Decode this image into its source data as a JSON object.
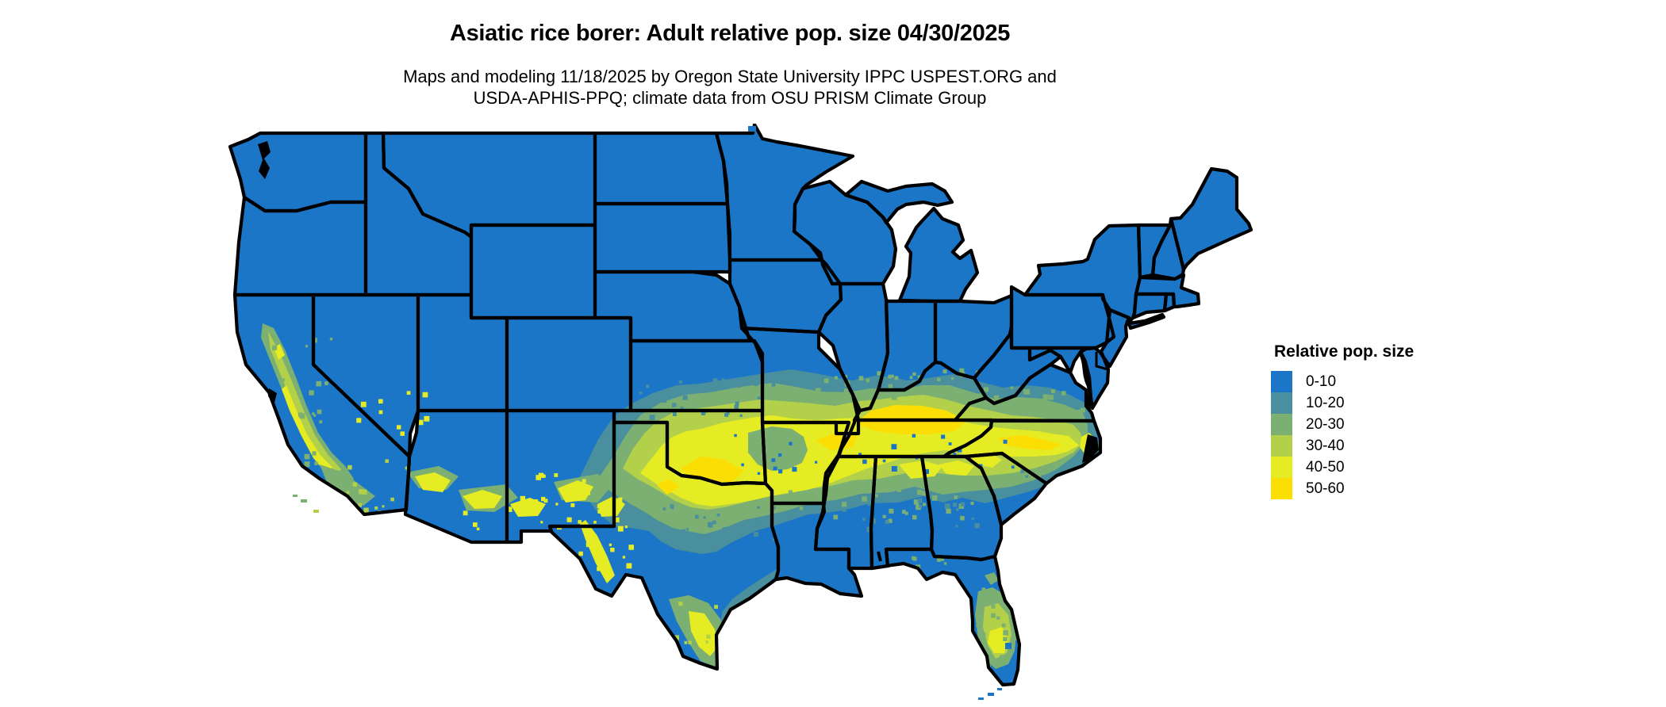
{
  "header": {
    "title": "Asiatic rice borer: Adult relative pop. size 04/30/2025",
    "subtitle_line1": "Maps and modeling 11/18/2025 by Oregon State University IPPC USPEST.ORG and",
    "subtitle_line2": "USDA-APHIS-PPQ; climate data from OSU PRISM Climate Group"
  },
  "legend": {
    "title": "Relative pop. size",
    "items": [
      {
        "label": "0-10",
        "color": "#1b76c8"
      },
      {
        "label": "10-20",
        "color": "#4a8f9d"
      },
      {
        "label": "20-30",
        "color": "#7cb072"
      },
      {
        "label": "30-40",
        "color": "#b2d04a"
      },
      {
        "label": "40-50",
        "color": "#e5ec23"
      },
      {
        "label": "50-60",
        "color": "#fbdf04"
      }
    ]
  },
  "map": {
    "background_color": "#ffffff",
    "state_border_color": "#000000"
  }
}
